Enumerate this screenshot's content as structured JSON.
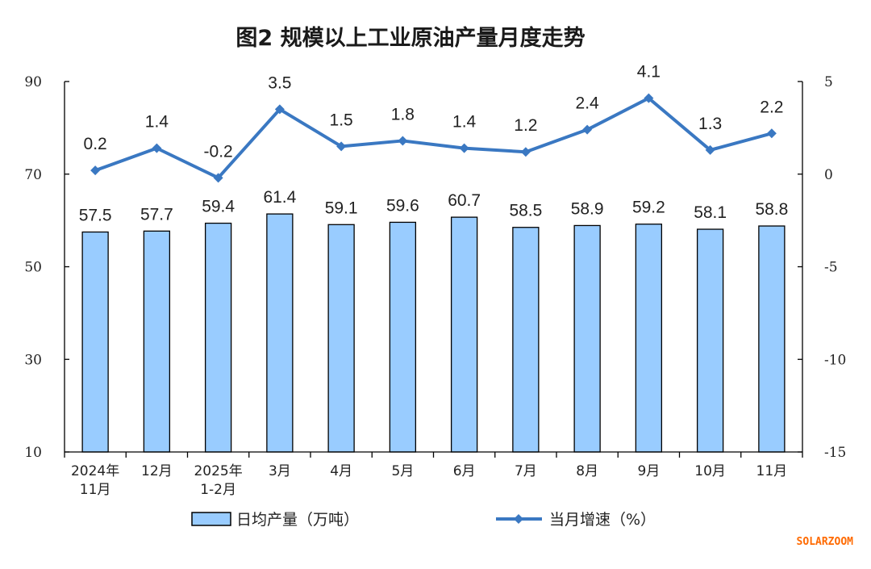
{
  "chart_data": {
    "type": "bar+line",
    "title": "图2  规模以上工业原油产量月度走势",
    "categories": [
      [
        "2024年",
        "11月"
      ],
      [
        "12月"
      ],
      [
        "2025年",
        "1-2月"
      ],
      [
        "3月"
      ],
      [
        "4月"
      ],
      [
        "5月"
      ],
      [
        "6月"
      ],
      [
        "7月"
      ],
      [
        "8月"
      ],
      [
        "9月"
      ],
      [
        "10月"
      ],
      [
        "11月"
      ]
    ],
    "series": [
      {
        "name": "日均产量（万吨）",
        "type": "bar",
        "axis": "left",
        "values": [
          57.5,
          57.7,
          59.4,
          61.4,
          59.1,
          59.6,
          60.7,
          58.5,
          58.9,
          59.2,
          58.1,
          58.8
        ],
        "labels": [
          "57.5",
          "57.7",
          "59.4",
          "61.4",
          "59.1",
          "59.6",
          "60.7",
          "58.5",
          "58.9",
          "59.2",
          "58.1",
          "58.8"
        ],
        "color": "#99ccff"
      },
      {
        "name": "当月增速（%）",
        "type": "line",
        "axis": "right",
        "values": [
          0.2,
          1.4,
          -0.2,
          3.5,
          1.5,
          1.8,
          1.4,
          1.2,
          2.4,
          4.1,
          1.3,
          2.2
        ],
        "labels": [
          "0.2",
          "1.4",
          "-0.2",
          "3.5",
          "1.5",
          "1.8",
          "1.4",
          "1.2",
          "2.4",
          "4.1",
          "1.3",
          "2.2"
        ],
        "color": "#3a78c2"
      }
    ],
    "y_left": {
      "ylim": [
        10,
        90
      ],
      "ticks": [
        "10",
        "30",
        "50",
        "70",
        "90"
      ]
    },
    "y_right": {
      "ylim": [
        -15,
        5
      ],
      "ticks": [
        "-15",
        "-10",
        "-5",
        "0",
        "5"
      ]
    },
    "grid": false,
    "legend_position": "bottom"
  },
  "watermark": "SOLARZOOM"
}
